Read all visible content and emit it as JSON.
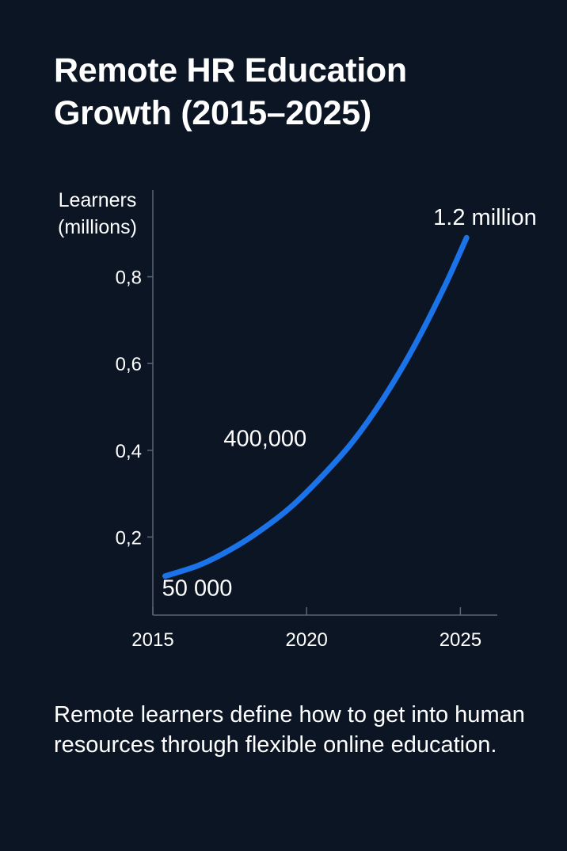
{
  "title_lines": [
    "Remote HR Education",
    "Growth (2015–2025)"
  ],
  "caption": "Remote learners define how to get into human resources through flexible online education.",
  "chart_data": {
    "type": "line",
    "title": "Remote HR Education Growth (2015–2025)",
    "ylabel_lines": [
      "Learners",
      "(millions)"
    ],
    "xlabel": "",
    "x_ticks": [
      2015,
      2020,
      2025
    ],
    "y_ticks": [
      {
        "value": 0.2,
        "label": "0,2"
      },
      {
        "value": 0.4,
        "label": "0,4"
      },
      {
        "value": 0.6,
        "label": "0,6"
      },
      {
        "value": 0.8,
        "label": "0,8"
      }
    ],
    "xlim": [
      2015,
      2026.2
    ],
    "ylim": [
      0.02,
      1.0
    ],
    "grid": false,
    "series": [
      {
        "color": "#1a73e8",
        "x": [
          2015.4,
          2016.5,
          2017.5,
          2018.5,
          2019.5,
          2020.5,
          2021.5,
          2022.5,
          2023.5,
          2024.5,
          2025.2
        ],
        "y": [
          0.11,
          0.135,
          0.17,
          0.215,
          0.27,
          0.34,
          0.42,
          0.52,
          0.64,
          0.78,
          0.89
        ]
      }
    ],
    "annotations": [
      {
        "text": "50 000",
        "x": 2015.3,
        "y": 0.065
      },
      {
        "text": "400,000",
        "x": 2017.3,
        "y": 0.41
      },
      {
        "text": "1.2 million",
        "x": 2025.8,
        "y": 0.92
      }
    ]
  }
}
